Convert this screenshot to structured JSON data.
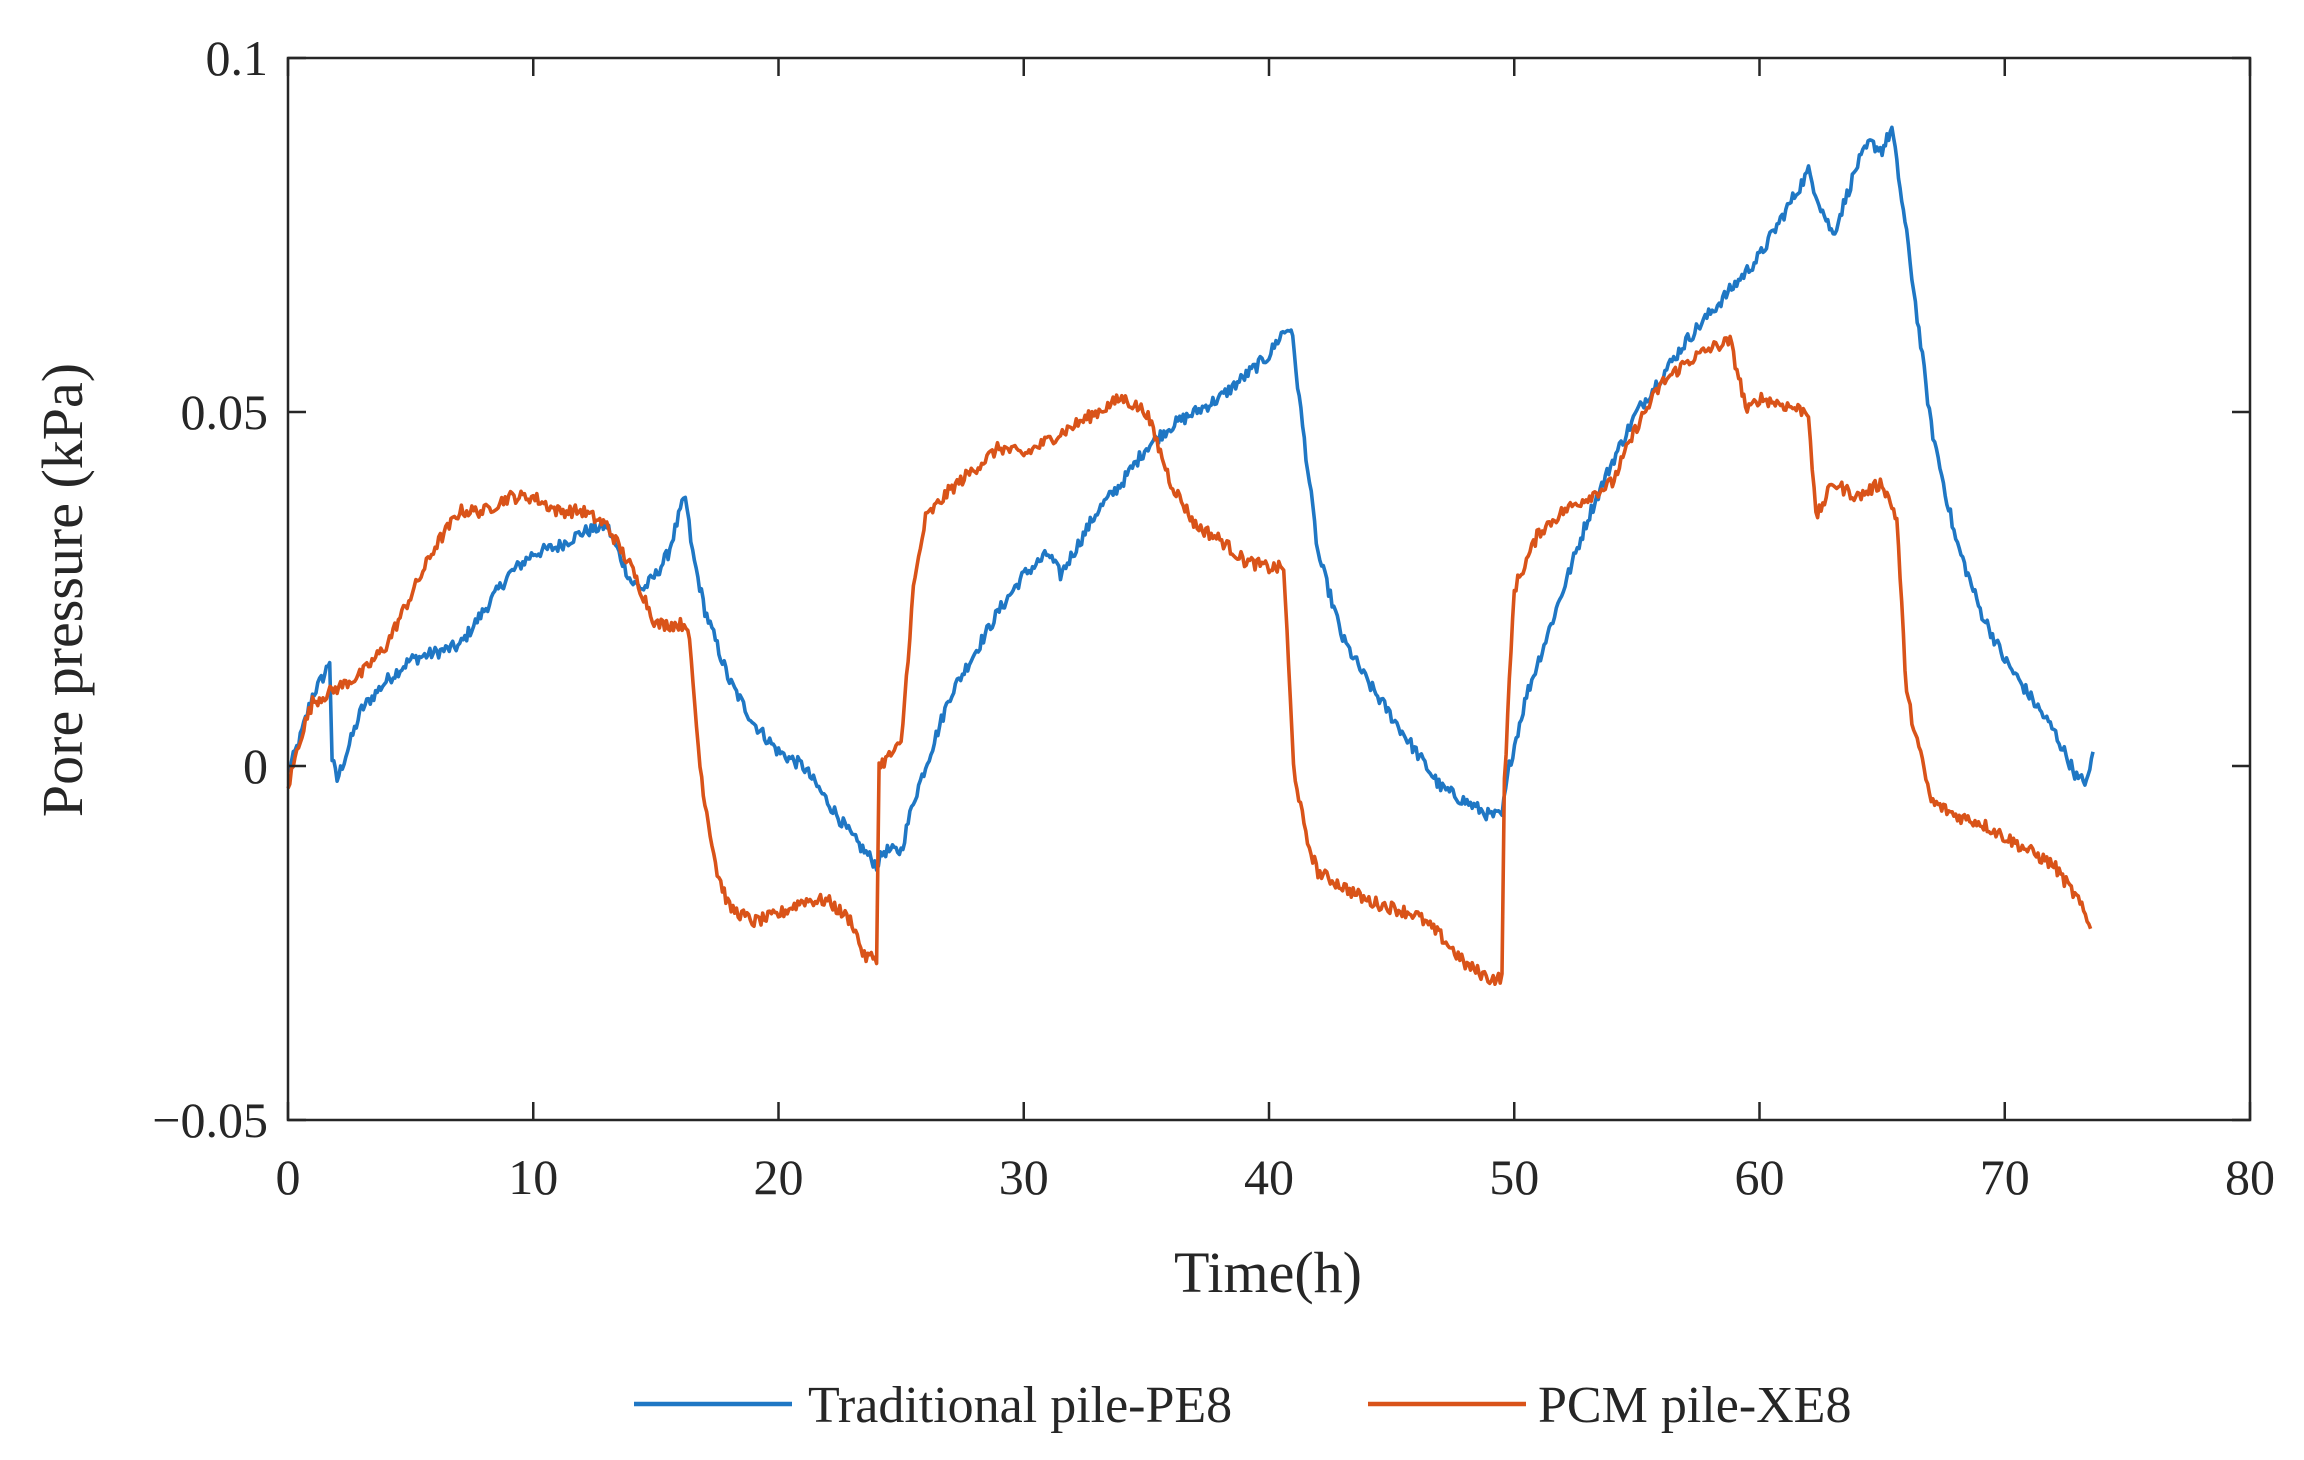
{
  "chart_data": {
    "type": "line",
    "title": "",
    "xlabel": "Time(h)",
    "ylabel": "Pore pressure (kPa)",
    "xlim": [
      0,
      80
    ],
    "ylim": [
      -0.05,
      0.1
    ],
    "xticks": [
      0,
      10,
      20,
      30,
      40,
      50,
      60,
      70,
      80
    ],
    "xtick_labels": [
      "0",
      "10",
      "20",
      "30",
      "40",
      "50",
      "60",
      "70",
      "80"
    ],
    "yticks": [
      -0.05,
      0,
      0.05,
      0.1
    ],
    "ytick_labels": [
      "−0.05",
      "0",
      "0.05",
      "0.1"
    ],
    "grid": false,
    "legend_position": "bottom-center",
    "series": [
      {
        "name": "Traditional pile-PE8",
        "color": "#1f77c4",
        "points": [
          [
            0,
            -0.001
          ],
          [
            0.5,
            0.004
          ],
          [
            1,
            0.01
          ],
          [
            1.5,
            0.013
          ],
          [
            1.7,
            0.015
          ],
          [
            1.8,
            0.001
          ],
          [
            2,
            -0.002
          ],
          [
            2.5,
            0.003
          ],
          [
            3,
            0.008
          ],
          [
            4,
            0.012
          ],
          [
            5,
            0.015
          ],
          [
            6,
            0.016
          ],
          [
            7,
            0.017
          ],
          [
            8,
            0.022
          ],
          [
            9,
            0.027
          ],
          [
            10,
            0.03
          ],
          [
            11,
            0.031
          ],
          [
            12,
            0.033
          ],
          [
            13,
            0.034
          ],
          [
            13.5,
            0.03
          ],
          [
            14,
            0.026
          ],
          [
            14.5,
            0.025
          ],
          [
            15,
            0.027
          ],
          [
            15.5,
            0.03
          ],
          [
            16,
            0.036
          ],
          [
            16.2,
            0.038
          ],
          [
            16.5,
            0.03
          ],
          [
            17,
            0.022
          ],
          [
            18,
            0.012
          ],
          [
            19,
            0.006
          ],
          [
            20,
            0.002
          ],
          [
            21,
            0.0
          ],
          [
            22,
            -0.005
          ],
          [
            23,
            -0.01
          ],
          [
            24,
            -0.014
          ],
          [
            24.3,
            -0.012
          ],
          [
            25,
            -0.012
          ],
          [
            25.5,
            -0.005
          ],
          [
            26,
            0.0
          ],
          [
            27,
            0.01
          ],
          [
            28,
            0.016
          ],
          [
            29,
            0.022
          ],
          [
            30,
            0.027
          ],
          [
            31,
            0.03
          ],
          [
            31.5,
            0.027
          ],
          [
            32,
            0.03
          ],
          [
            33,
            0.036
          ],
          [
            34,
            0.04
          ],
          [
            35,
            0.045
          ],
          [
            36,
            0.048
          ],
          [
            37,
            0.05
          ],
          [
            38,
            0.052
          ],
          [
            39,
            0.055
          ],
          [
            40,
            0.058
          ],
          [
            40.5,
            0.061
          ],
          [
            40.9,
            0.062
          ],
          [
            41.3,
            0.05
          ],
          [
            42,
            0.03
          ],
          [
            43,
            0.018
          ],
          [
            44,
            0.012
          ],
          [
            45,
            0.007
          ],
          [
            46,
            0.002
          ],
          [
            47,
            -0.003
          ],
          [
            48,
            -0.005
          ],
          [
            49,
            -0.007
          ],
          [
            49.5,
            -0.007
          ],
          [
            49.8,
            0.0
          ],
          [
            50.5,
            0.01
          ],
          [
            51,
            0.015
          ],
          [
            52,
            0.025
          ],
          [
            53,
            0.035
          ],
          [
            54,
            0.043
          ],
          [
            55,
            0.05
          ],
          [
            56,
            0.055
          ],
          [
            57,
            0.06
          ],
          [
            58,
            0.064
          ],
          [
            59,
            0.068
          ],
          [
            60,
            0.072
          ],
          [
            61,
            0.078
          ],
          [
            62,
            0.084
          ],
          [
            62.5,
            0.079
          ],
          [
            63,
            0.075
          ],
          [
            63.5,
            0.08
          ],
          [
            64,
            0.085
          ],
          [
            64.5,
            0.088
          ],
          [
            65,
            0.087
          ],
          [
            65.4,
            0.09
          ],
          [
            66,
            0.075
          ],
          [
            67,
            0.048
          ],
          [
            68,
            0.032
          ],
          [
            69,
            0.022
          ],
          [
            70,
            0.015
          ],
          [
            71,
            0.01
          ],
          [
            72,
            0.005
          ],
          [
            73,
            -0.002
          ],
          [
            73.4,
            -0.002
          ],
          [
            73.6,
            0.002
          ]
        ]
      },
      {
        "name": "PCM pile-XE8",
        "color": "#d95319",
        "points": [
          [
            0,
            -0.003
          ],
          [
            0.5,
            0.004
          ],
          [
            1,
            0.009
          ],
          [
            2,
            0.011
          ],
          [
            3,
            0.013
          ],
          [
            4,
            0.017
          ],
          [
            5,
            0.024
          ],
          [
            6,
            0.031
          ],
          [
            7,
            0.036
          ],
          [
            8,
            0.036
          ],
          [
            9,
            0.038
          ],
          [
            10,
            0.038
          ],
          [
            11,
            0.036
          ],
          [
            12,
            0.036
          ],
          [
            13,
            0.034
          ],
          [
            14,
            0.028
          ],
          [
            15,
            0.02
          ],
          [
            16,
            0.02
          ],
          [
            16.3,
            0.02
          ],
          [
            16.8,
            0.0
          ],
          [
            17,
            -0.005
          ],
          [
            17.5,
            -0.015
          ],
          [
            18,
            -0.02
          ],
          [
            19,
            -0.022
          ],
          [
            20,
            -0.021
          ],
          [
            21,
            -0.019
          ],
          [
            22,
            -0.019
          ],
          [
            23,
            -0.022
          ],
          [
            23.5,
            -0.027
          ],
          [
            24,
            -0.027
          ],
          [
            24.1,
            0.0
          ],
          [
            25,
            0.003
          ],
          [
            25.5,
            0.025
          ],
          [
            26,
            0.035
          ],
          [
            27,
            0.039
          ],
          [
            28,
            0.042
          ],
          [
            29,
            0.045
          ],
          [
            30,
            0.044
          ],
          [
            31,
            0.046
          ],
          [
            32,
            0.048
          ],
          [
            33,
            0.05
          ],
          [
            34,
            0.052
          ],
          [
            35,
            0.05
          ],
          [
            36,
            0.04
          ],
          [
            37,
            0.034
          ],
          [
            38,
            0.032
          ],
          [
            39,
            0.029
          ],
          [
            40,
            0.028
          ],
          [
            40.6,
            0.028
          ],
          [
            41,
            0.0
          ],
          [
            41.5,
            -0.01
          ],
          [
            42,
            -0.015
          ],
          [
            43,
            -0.017
          ],
          [
            44,
            -0.019
          ],
          [
            45,
            -0.02
          ],
          [
            46,
            -0.021
          ],
          [
            47,
            -0.024
          ],
          [
            48,
            -0.028
          ],
          [
            49,
            -0.03
          ],
          [
            49.5,
            -0.03
          ],
          [
            49.6,
            -0.002
          ],
          [
            50,
            0.025
          ],
          [
            51,
            0.033
          ],
          [
            52,
            0.036
          ],
          [
            53,
            0.038
          ],
          [
            54,
            0.04
          ],
          [
            55,
            0.048
          ],
          [
            56,
            0.054
          ],
          [
            57,
            0.057
          ],
          [
            58,
            0.059
          ],
          [
            58.8,
            0.06
          ],
          [
            59.5,
            0.05
          ],
          [
            60,
            0.052
          ],
          [
            61,
            0.051
          ],
          [
            62,
            0.05
          ],
          [
            62.3,
            0.035
          ],
          [
            63,
            0.04
          ],
          [
            64,
            0.038
          ],
          [
            65,
            0.04
          ],
          [
            65.6,
            0.035
          ],
          [
            66,
            0.01
          ],
          [
            67,
            -0.005
          ],
          [
            68,
            -0.007
          ],
          [
            69,
            -0.008
          ],
          [
            70,
            -0.01
          ],
          [
            71,
            -0.012
          ],
          [
            72,
            -0.014
          ],
          [
            73,
            -0.019
          ],
          [
            73.5,
            -0.023
          ]
        ]
      }
    ]
  }
}
